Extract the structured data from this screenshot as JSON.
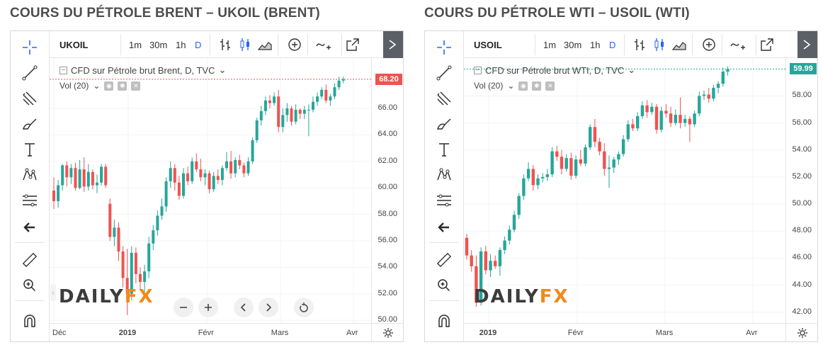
{
  "colors": {
    "up": "#26a69a",
    "down": "#ef5350",
    "tool": "#2b2b2b",
    "accent": "#2962ff",
    "fx": "#f08a1c"
  },
  "toolbar": {
    "timeframes": [
      "1m",
      "30m",
      "1h",
      "D"
    ],
    "active_timeframe": "D",
    "icons": [
      "bar-style-icon",
      "candles-icon",
      "area-icon",
      "compare-add-icon",
      "indicators-icon",
      "popout-icon",
      "fullscreen-icon"
    ]
  },
  "sidebar": {
    "icons": [
      "crosshair-icon",
      "trend-line-icon",
      "pitchfork-icon",
      "brush-icon",
      "text-icon",
      "pattern-icon",
      "fib-icon",
      "back-arrow-icon",
      "ruler-icon",
      "zoom-icon",
      "magnet-icon"
    ]
  },
  "watermark": {
    "part1": "DAILY",
    "part2": "FX"
  },
  "nav_controls": [
    "zoom-out",
    "zoom-in",
    "scroll-left",
    "scroll-right",
    "reset"
  ],
  "panels": [
    {
      "heading": "COURS DU PÉTROLE BRENT – UKOIL (BRENT)",
      "symbol": "UKOIL",
      "legend": "CFD sur Pétrole brut Brent, D, TVC",
      "vol_label": "Vol (20)",
      "last_price": "68.20",
      "price_ticks": [
        "66.00",
        "64.00",
        "62.00",
        "60.00",
        "58.00",
        "56.00",
        "54.00",
        "52.00",
        "50.00"
      ],
      "time_ticks": [
        "Déc",
        "2019",
        "Févr",
        "Mars",
        "Avr"
      ]
    },
    {
      "heading": "COURS DU PÉTROLE WTI – USOIL (WTI)",
      "symbol": "USOIL",
      "legend": "CFD sur Pétrole brut WTI, D, TVC",
      "vol_label": "Vol (20)",
      "last_price": "59.99",
      "price_ticks": [
        "58.00",
        "56.00",
        "54.00",
        "52.00",
        "50.00",
        "48.00",
        "46.00",
        "44.00",
        "42.00"
      ],
      "time_ticks": [
        "2019",
        "Févr",
        "Mars",
        "Avr"
      ]
    }
  ],
  "chart_data": [
    {
      "type": "candlestick",
      "title": "COURS DU PÉTROLE BRENT – UKOIL (BRENT)",
      "ylim": [
        49.8,
        69.8
      ],
      "x_ticks": [
        "Déc",
        "2019",
        "Févr",
        "Mars",
        "Avr"
      ],
      "last": 68.2,
      "series": [
        {
          "o": 59.8,
          "h": 60.8,
          "l": 58.4,
          "c": 59.0
        },
        {
          "o": 59.0,
          "h": 60.6,
          "l": 58.5,
          "c": 60.2
        },
        {
          "o": 60.2,
          "h": 61.8,
          "l": 59.8,
          "c": 61.7
        },
        {
          "o": 61.7,
          "h": 62.0,
          "l": 60.1,
          "c": 60.8
        },
        {
          "o": 60.8,
          "h": 61.8,
          "l": 60.3,
          "c": 61.5
        },
        {
          "o": 61.5,
          "h": 61.9,
          "l": 59.8,
          "c": 60.0
        },
        {
          "o": 60.0,
          "h": 62.1,
          "l": 59.9,
          "c": 61.4
        },
        {
          "o": 61.4,
          "h": 62.3,
          "l": 59.7,
          "c": 60.1
        },
        {
          "o": 60.1,
          "h": 61.8,
          "l": 59.8,
          "c": 61.2
        },
        {
          "o": 61.2,
          "h": 61.4,
          "l": 59.9,
          "c": 60.2
        },
        {
          "o": 60.2,
          "h": 61.0,
          "l": 59.6,
          "c": 60.4
        },
        {
          "o": 60.4,
          "h": 61.8,
          "l": 60.2,
          "c": 61.6
        },
        {
          "o": 61.6,
          "h": 61.8,
          "l": 60.0,
          "c": 60.2
        },
        {
          "o": 58.8,
          "h": 59.2,
          "l": 56.0,
          "c": 56.3
        },
        {
          "o": 56.3,
          "h": 57.6,
          "l": 55.6,
          "c": 57.0
        },
        {
          "o": 57.0,
          "h": 57.4,
          "l": 54.5,
          "c": 55.2
        },
        {
          "o": 55.2,
          "h": 55.6,
          "l": 52.5,
          "c": 53.2
        },
        {
          "o": 53.2,
          "h": 55.4,
          "l": 50.4,
          "c": 52.0
        },
        {
          "o": 52.0,
          "h": 55.6,
          "l": 51.5,
          "c": 55.1
        },
        {
          "o": 55.1,
          "h": 55.5,
          "l": 52.8,
          "c": 53.5
        },
        {
          "o": 53.5,
          "h": 54.0,
          "l": 52.3,
          "c": 52.9
        },
        {
          "o": 52.9,
          "h": 54.2,
          "l": 51.7,
          "c": 53.7
        },
        {
          "o": 53.7,
          "h": 56.3,
          "l": 53.2,
          "c": 55.8
        },
        {
          "o": 55.8,
          "h": 57.2,
          "l": 55.3,
          "c": 56.8
        },
        {
          "o": 56.8,
          "h": 58.3,
          "l": 56.4,
          "c": 57.9
        },
        {
          "o": 57.9,
          "h": 59.2,
          "l": 57.6,
          "c": 58.6
        },
        {
          "o": 58.6,
          "h": 60.8,
          "l": 58.2,
          "c": 60.5
        },
        {
          "o": 60.5,
          "h": 62.0,
          "l": 60.0,
          "c": 61.5
        },
        {
          "o": 61.5,
          "h": 61.8,
          "l": 59.8,
          "c": 60.4
        },
        {
          "o": 60.4,
          "h": 60.9,
          "l": 59.1,
          "c": 59.4
        },
        {
          "o": 59.4,
          "h": 61.5,
          "l": 59.2,
          "c": 61.1
        },
        {
          "o": 61.1,
          "h": 61.6,
          "l": 60.2,
          "c": 60.5
        },
        {
          "o": 60.5,
          "h": 62.3,
          "l": 60.3,
          "c": 62.0
        },
        {
          "o": 62.0,
          "h": 62.6,
          "l": 61.2,
          "c": 61.4
        },
        {
          "o": 61.4,
          "h": 62.2,
          "l": 60.5,
          "c": 60.8
        },
        {
          "o": 60.8,
          "h": 61.4,
          "l": 60.2,
          "c": 61.1
        },
        {
          "o": 61.1,
          "h": 61.3,
          "l": 59.6,
          "c": 59.9
        },
        {
          "o": 59.9,
          "h": 61.2,
          "l": 59.7,
          "c": 60.9
        },
        {
          "o": 60.9,
          "h": 61.4,
          "l": 60.3,
          "c": 60.6
        },
        {
          "o": 60.6,
          "h": 61.7,
          "l": 60.2,
          "c": 61.5
        },
        {
          "o": 61.5,
          "h": 62.7,
          "l": 61.3,
          "c": 62.0
        },
        {
          "o": 62.0,
          "h": 62.8,
          "l": 60.7,
          "c": 61.1
        },
        {
          "o": 61.1,
          "h": 62.3,
          "l": 60.8,
          "c": 62.1
        },
        {
          "o": 62.1,
          "h": 62.5,
          "l": 61.4,
          "c": 61.7
        },
        {
          "o": 61.7,
          "h": 61.9,
          "l": 60.8,
          "c": 61.1
        },
        {
          "o": 61.1,
          "h": 62.3,
          "l": 60.9,
          "c": 62.0
        },
        {
          "o": 62.0,
          "h": 63.8,
          "l": 61.8,
          "c": 63.6
        },
        {
          "o": 63.6,
          "h": 65.3,
          "l": 63.4,
          "c": 65.1
        },
        {
          "o": 65.1,
          "h": 66.2,
          "l": 64.7,
          "c": 65.8
        },
        {
          "o": 65.8,
          "h": 66.9,
          "l": 65.5,
          "c": 66.6
        },
        {
          "o": 66.6,
          "h": 67.0,
          "l": 66.0,
          "c": 66.4
        },
        {
          "o": 66.4,
          "h": 67.2,
          "l": 66.2,
          "c": 66.9
        },
        {
          "o": 66.9,
          "h": 67.4,
          "l": 64.2,
          "c": 64.6
        },
        {
          "o": 64.6,
          "h": 66.0,
          "l": 64.2,
          "c": 65.5
        },
        {
          "o": 65.5,
          "h": 66.4,
          "l": 65.0,
          "c": 66.0
        },
        {
          "o": 66.0,
          "h": 66.2,
          "l": 64.7,
          "c": 65.0
        },
        {
          "o": 65.0,
          "h": 66.3,
          "l": 64.8,
          "c": 65.9
        },
        {
          "o": 65.9,
          "h": 66.0,
          "l": 65.2,
          "c": 65.6
        },
        {
          "o": 65.6,
          "h": 66.2,
          "l": 65.2,
          "c": 65.9
        },
        {
          "o": 65.9,
          "h": 66.3,
          "l": 63.9,
          "c": 65.9
        },
        {
          "o": 65.9,
          "h": 66.9,
          "l": 65.7,
          "c": 66.5
        },
        {
          "o": 66.5,
          "h": 67.2,
          "l": 66.2,
          "c": 66.9
        },
        {
          "o": 66.9,
          "h": 67.6,
          "l": 66.7,
          "c": 67.4
        },
        {
          "o": 67.4,
          "h": 67.8,
          "l": 66.4,
          "c": 66.6
        },
        {
          "o": 66.6,
          "h": 67.1,
          "l": 66.2,
          "c": 66.9
        },
        {
          "o": 66.9,
          "h": 67.9,
          "l": 66.7,
          "c": 67.6
        },
        {
          "o": 67.6,
          "h": 68.4,
          "l": 67.4,
          "c": 68.1
        },
        {
          "o": 68.1,
          "h": 68.4,
          "l": 67.9,
          "c": 68.2
        }
      ]
    },
    {
      "type": "candlestick",
      "title": "COURS DU PÉTROLE WTI – USOIL (WTI)",
      "ylim": [
        41.2,
        60.8
      ],
      "x_ticks": [
        "2019",
        "Févr",
        "Mars",
        "Avr"
      ],
      "last": 59.99,
      "series": [
        {
          "o": 47.5,
          "h": 47.8,
          "l": 45.9,
          "c": 46.2
        },
        {
          "o": 46.2,
          "h": 46.6,
          "l": 45.0,
          "c": 45.4
        },
        {
          "o": 45.4,
          "h": 46.2,
          "l": 42.4,
          "c": 42.7
        },
        {
          "o": 42.7,
          "h": 46.8,
          "l": 42.5,
          "c": 46.5
        },
        {
          "o": 46.5,
          "h": 46.9,
          "l": 44.8,
          "c": 45.1
        },
        {
          "o": 45.1,
          "h": 46.3,
          "l": 44.6,
          "c": 45.8
        },
        {
          "o": 45.8,
          "h": 46.2,
          "l": 45.2,
          "c": 45.4
        },
        {
          "o": 45.4,
          "h": 46.8,
          "l": 44.7,
          "c": 46.6
        },
        {
          "o": 46.6,
          "h": 47.6,
          "l": 46.3,
          "c": 47.3
        },
        {
          "o": 47.3,
          "h": 48.4,
          "l": 47.0,
          "c": 48.1
        },
        {
          "o": 48.1,
          "h": 49.5,
          "l": 47.9,
          "c": 49.2
        },
        {
          "o": 49.2,
          "h": 50.8,
          "l": 48.9,
          "c": 50.6
        },
        {
          "o": 50.6,
          "h": 52.2,
          "l": 50.3,
          "c": 51.9
        },
        {
          "o": 51.9,
          "h": 53.1,
          "l": 51.7,
          "c": 52.6
        },
        {
          "o": 52.6,
          "h": 52.9,
          "l": 51.0,
          "c": 51.4
        },
        {
          "o": 51.4,
          "h": 52.2,
          "l": 51.1,
          "c": 51.9
        },
        {
          "o": 51.9,
          "h": 52.3,
          "l": 51.6,
          "c": 52.0
        },
        {
          "o": 52.0,
          "h": 52.6,
          "l": 51.7,
          "c": 52.2
        },
        {
          "o": 52.2,
          "h": 54.2,
          "l": 52.0,
          "c": 53.9
        },
        {
          "o": 53.9,
          "h": 54.3,
          "l": 53.2,
          "c": 53.5
        },
        {
          "o": 53.5,
          "h": 54.0,
          "l": 52.2,
          "c": 52.6
        },
        {
          "o": 52.6,
          "h": 53.7,
          "l": 52.4,
          "c": 53.4
        },
        {
          "o": 53.4,
          "h": 53.8,
          "l": 51.8,
          "c": 52.1
        },
        {
          "o": 52.1,
          "h": 53.6,
          "l": 51.9,
          "c": 53.3
        },
        {
          "o": 53.3,
          "h": 54.0,
          "l": 52.8,
          "c": 53.0
        },
        {
          "o": 53.0,
          "h": 54.4,
          "l": 52.8,
          "c": 54.2
        },
        {
          "o": 54.2,
          "h": 55.9,
          "l": 54.0,
          "c": 55.7
        },
        {
          "o": 55.7,
          "h": 56.3,
          "l": 54.2,
          "c": 54.6
        },
        {
          "o": 54.6,
          "h": 54.9,
          "l": 53.6,
          "c": 53.9
        },
        {
          "o": 53.9,
          "h": 54.5,
          "l": 52.1,
          "c": 52.6
        },
        {
          "o": 52.6,
          "h": 53.6,
          "l": 51.2,
          "c": 52.7
        },
        {
          "o": 52.7,
          "h": 53.5,
          "l": 52.3,
          "c": 53.3
        },
        {
          "o": 53.3,
          "h": 53.9,
          "l": 52.9,
          "c": 53.7
        },
        {
          "o": 53.7,
          "h": 55.1,
          "l": 53.5,
          "c": 54.8
        },
        {
          "o": 54.8,
          "h": 56.2,
          "l": 54.6,
          "c": 55.9
        },
        {
          "o": 55.9,
          "h": 56.3,
          "l": 55.4,
          "c": 55.6
        },
        {
          "o": 55.6,
          "h": 56.8,
          "l": 55.4,
          "c": 56.5
        },
        {
          "o": 56.5,
          "h": 57.6,
          "l": 56.3,
          "c": 57.3
        },
        {
          "o": 57.3,
          "h": 57.7,
          "l": 56.4,
          "c": 56.8
        },
        {
          "o": 56.8,
          "h": 57.5,
          "l": 56.6,
          "c": 57.2
        },
        {
          "o": 57.2,
          "h": 57.4,
          "l": 55.2,
          "c": 55.5
        },
        {
          "o": 55.5,
          "h": 57.2,
          "l": 55.3,
          "c": 56.9
        },
        {
          "o": 56.9,
          "h": 57.4,
          "l": 56.4,
          "c": 56.7
        },
        {
          "o": 56.7,
          "h": 57.2,
          "l": 55.7,
          "c": 56.0
        },
        {
          "o": 56.0,
          "h": 57.0,
          "l": 55.8,
          "c": 56.6
        },
        {
          "o": 56.6,
          "h": 57.9,
          "l": 55.6,
          "c": 56.0
        },
        {
          "o": 56.0,
          "h": 56.6,
          "l": 55.7,
          "c": 56.3
        },
        {
          "o": 56.3,
          "h": 56.5,
          "l": 54.6,
          "c": 55.9
        },
        {
          "o": 55.9,
          "h": 56.9,
          "l": 55.7,
          "c": 56.7
        },
        {
          "o": 56.7,
          "h": 58.3,
          "l": 56.5,
          "c": 58.0
        },
        {
          "o": 58.0,
          "h": 58.4,
          "l": 57.7,
          "c": 58.1
        },
        {
          "o": 58.1,
          "h": 58.6,
          "l": 57.5,
          "c": 57.8
        },
        {
          "o": 57.8,
          "h": 58.8,
          "l": 57.6,
          "c": 58.6
        },
        {
          "o": 58.6,
          "h": 59.1,
          "l": 58.2,
          "c": 58.9
        },
        {
          "o": 58.9,
          "h": 60.1,
          "l": 58.7,
          "c": 59.8
        },
        {
          "o": 59.8,
          "h": 60.2,
          "l": 59.5,
          "c": 59.99
        }
      ]
    }
  ]
}
